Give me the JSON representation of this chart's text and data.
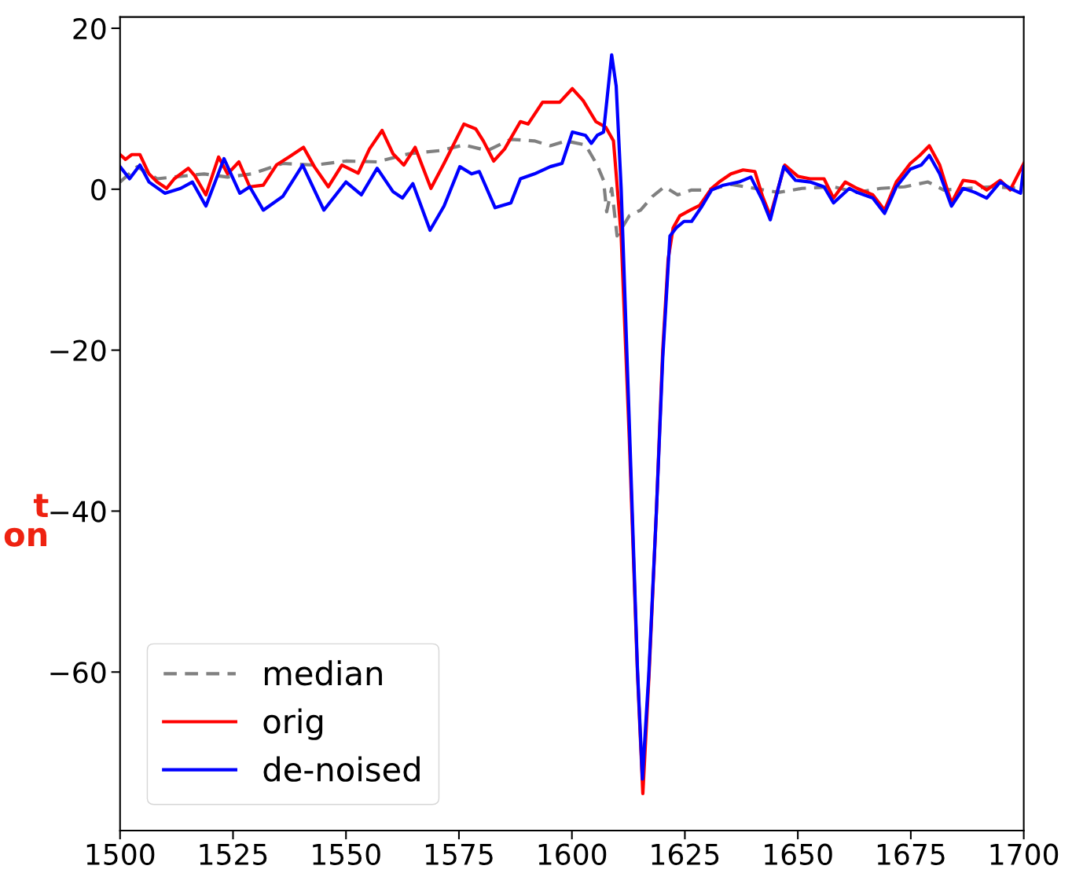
{
  "chart_data": {
    "type": "line",
    "xlim": [
      1500,
      1700
    ],
    "xticks": [
      1500,
      1525,
      1550,
      1575,
      1600,
      1625,
      1650,
      1675,
      1700
    ],
    "ylim": [
      -79.7,
      21.4
    ],
    "yticks": [
      {
        "value": 20,
        "label": "20"
      },
      {
        "value": 0,
        "label": "0"
      },
      {
        "value": -20,
        "label": "−20"
      },
      {
        "value": -40,
        "label": "−40"
      },
      {
        "value": -60,
        "label": "−60"
      }
    ],
    "grid": false,
    "legend": "bottom left",
    "marker": "none",
    "annotations": [
      "t\non"
    ],
    "series": [
      {
        "name": "median",
        "color": "#808080",
        "line_style": "dashed",
        "x": [
          1500,
          1503.8,
          1508.2,
          1513.4,
          1518.6,
          1523.8,
          1529.1,
          1536,
          1543,
          1550,
          1556.9,
          1563.9,
          1570.8,
          1576.1,
          1581.3,
          1586.5,
          1591.7,
          1595.2,
          1598.7,
          1603,
          1605.6,
          1607,
          1607.7,
          1608.8,
          1610,
          1612.7,
          1615.2,
          1617.8,
          1620.5,
          1623.4,
          1626.5,
          1630,
          1635.2,
          1640.5,
          1645.7,
          1650.9,
          1657.9,
          1663.1,
          1668.3,
          1673.6,
          1678.8,
          1682.3,
          1687.5,
          1692.7,
          1700
        ],
        "values": [
          0.9,
          2.8,
          1.3,
          1.6,
          1.9,
          1.5,
          1.9,
          3.2,
          3.0,
          3.5,
          3.4,
          4.4,
          4.8,
          5.5,
          4.8,
          6.2,
          6.0,
          5.4,
          6.0,
          5.5,
          3.0,
          1.1,
          -2.8,
          0.1,
          -5.8,
          -3.3,
          -2.6,
          -0.9,
          0.3,
          -0.7,
          -0.1,
          -0.1,
          0.6,
          0.1,
          -0.4,
          0.1,
          0.3,
          -0.4,
          0.1,
          0.3,
          0.9,
          -0.1,
          0.1,
          0.3,
          0.1
        ]
      },
      {
        "name": "orig",
        "color": "#ff0000",
        "line_style": "solid",
        "x": [
          1500,
          1501.2,
          1502.6,
          1504.4,
          1506.4,
          1508.2,
          1510.3,
          1512,
          1515.1,
          1516.5,
          1519,
          1521.8,
          1523.8,
          1526.3,
          1528.7,
          1531.7,
          1534.6,
          1537.4,
          1540.6,
          1543,
          1546.1,
          1549.1,
          1552.7,
          1555.2,
          1558,
          1560.4,
          1562.8,
          1565.3,
          1568.8,
          1571.7,
          1576.1,
          1578.7,
          1580.4,
          1582.7,
          1585.1,
          1588.6,
          1590.3,
          1593.5,
          1597.3,
          1600.1,
          1602.5,
          1605.3,
          1607.5,
          1609.2,
          1610.2,
          1610.9,
          1612.7,
          1614.5,
          1615.7,
          1617.1,
          1618.7,
          1620.1,
          1621.3,
          1622.4,
          1623.9,
          1626.2,
          1628.3,
          1630.9,
          1632.6,
          1635.2,
          1637.9,
          1640.5,
          1642.2,
          1643.9,
          1647.1,
          1650,
          1652.7,
          1655.8,
          1657.9,
          1660.5,
          1663.1,
          1666.6,
          1669.2,
          1671.8,
          1674.9,
          1677,
          1679.1,
          1681.4,
          1684,
          1686.6,
          1689.2,
          1691.8,
          1694.8,
          1697,
          1700
        ],
        "values": [
          4.3,
          3.7,
          4.3,
          4.3,
          1.9,
          0.9,
          0.1,
          1.3,
          2.6,
          1.7,
          -0.7,
          4.0,
          1.9,
          3.4,
          0.3,
          0.5,
          3.0,
          4.0,
          5.2,
          2.8,
          0.3,
          3.0,
          2.0,
          5.0,
          7.3,
          4.4,
          3.0,
          5.2,
          0.1,
          3.2,
          8.1,
          7.5,
          6.0,
          3.5,
          5.0,
          8.4,
          8.1,
          10.8,
          10.8,
          12.5,
          11.0,
          8.4,
          7.7,
          6.0,
          -0.9,
          -5.8,
          -31,
          -60,
          -75.1,
          -60,
          -40,
          -20,
          -8.7,
          -4.8,
          -3.3,
          -2.6,
          -2.0,
          0.1,
          0.9,
          1.9,
          2.4,
          2.2,
          -0.9,
          -3.3,
          3.0,
          1.6,
          1.3,
          1.3,
          -1.1,
          0.9,
          0.1,
          -0.7,
          -2.6,
          0.9,
          3.2,
          4.2,
          5.4,
          3.0,
          -1.7,
          1.1,
          0.9,
          -0.1,
          1.1,
          -0.1,
          3.2
        ]
      },
      {
        "name": "de-noised",
        "color": "#0000ff",
        "line_style": "solid",
        "x": [
          1500,
          1502.1,
          1504.4,
          1506.4,
          1509.9,
          1513.4,
          1516,
          1519,
          1523,
          1526.5,
          1528.7,
          1531.7,
          1536,
          1540.4,
          1545.1,
          1550,
          1553.4,
          1556.9,
          1560.4,
          1562.5,
          1564.8,
          1568.6,
          1571.7,
          1575.2,
          1577.8,
          1579.5,
          1583,
          1586.5,
          1588.6,
          1591.7,
          1595.2,
          1597.8,
          1600.1,
          1603,
          1604.3,
          1605.6,
          1607,
          1608.8,
          1609.8,
          1610.9,
          1612.7,
          1614.5,
          1615.6,
          1617,
          1618.7,
          1620.1,
          1621.7,
          1623.1,
          1624.8,
          1626.5,
          1628.8,
          1630.9,
          1633.5,
          1637,
          1639.6,
          1642.2,
          1643.9,
          1646.9,
          1649.5,
          1652.7,
          1655.8,
          1657.9,
          1661.4,
          1663.1,
          1666.6,
          1669.2,
          1671.8,
          1674.9,
          1677.3,
          1679.1,
          1681.4,
          1684,
          1686.6,
          1689.2,
          1691.8,
          1694.8,
          1697,
          1699.3,
          1700
        ],
        "values": [
          2.8,
          1.3,
          3.0,
          0.9,
          -0.5,
          0.1,
          0.9,
          -2.1,
          3.8,
          -0.5,
          0.3,
          -2.6,
          -0.9,
          3.0,
          -2.6,
          0.9,
          -0.7,
          2.6,
          -0.3,
          -1.1,
          0.7,
          -5.1,
          -2.1,
          2.8,
          1.9,
          2.2,
          -2.3,
          -1.7,
          1.3,
          1.9,
          2.8,
          3.2,
          7.1,
          6.7,
          5.7,
          6.7,
          7.1,
          16.7,
          12.8,
          0.1,
          -29,
          -59.5,
          -73.3,
          -60.4,
          -40,
          -21,
          -5.8,
          -4.8,
          -4.0,
          -4.0,
          -2.1,
          -0.1,
          0.5,
          0.9,
          1.5,
          -1.4,
          -3.8,
          2.8,
          1.1,
          0.9,
          0.3,
          -1.7,
          0.1,
          -0.4,
          -1.1,
          -3.0,
          0.3,
          2.5,
          3.0,
          4.2,
          1.9,
          -2.1,
          0.1,
          -0.4,
          -1.1,
          0.9,
          0.1,
          -0.5,
          2.8
        ]
      }
    ]
  }
}
